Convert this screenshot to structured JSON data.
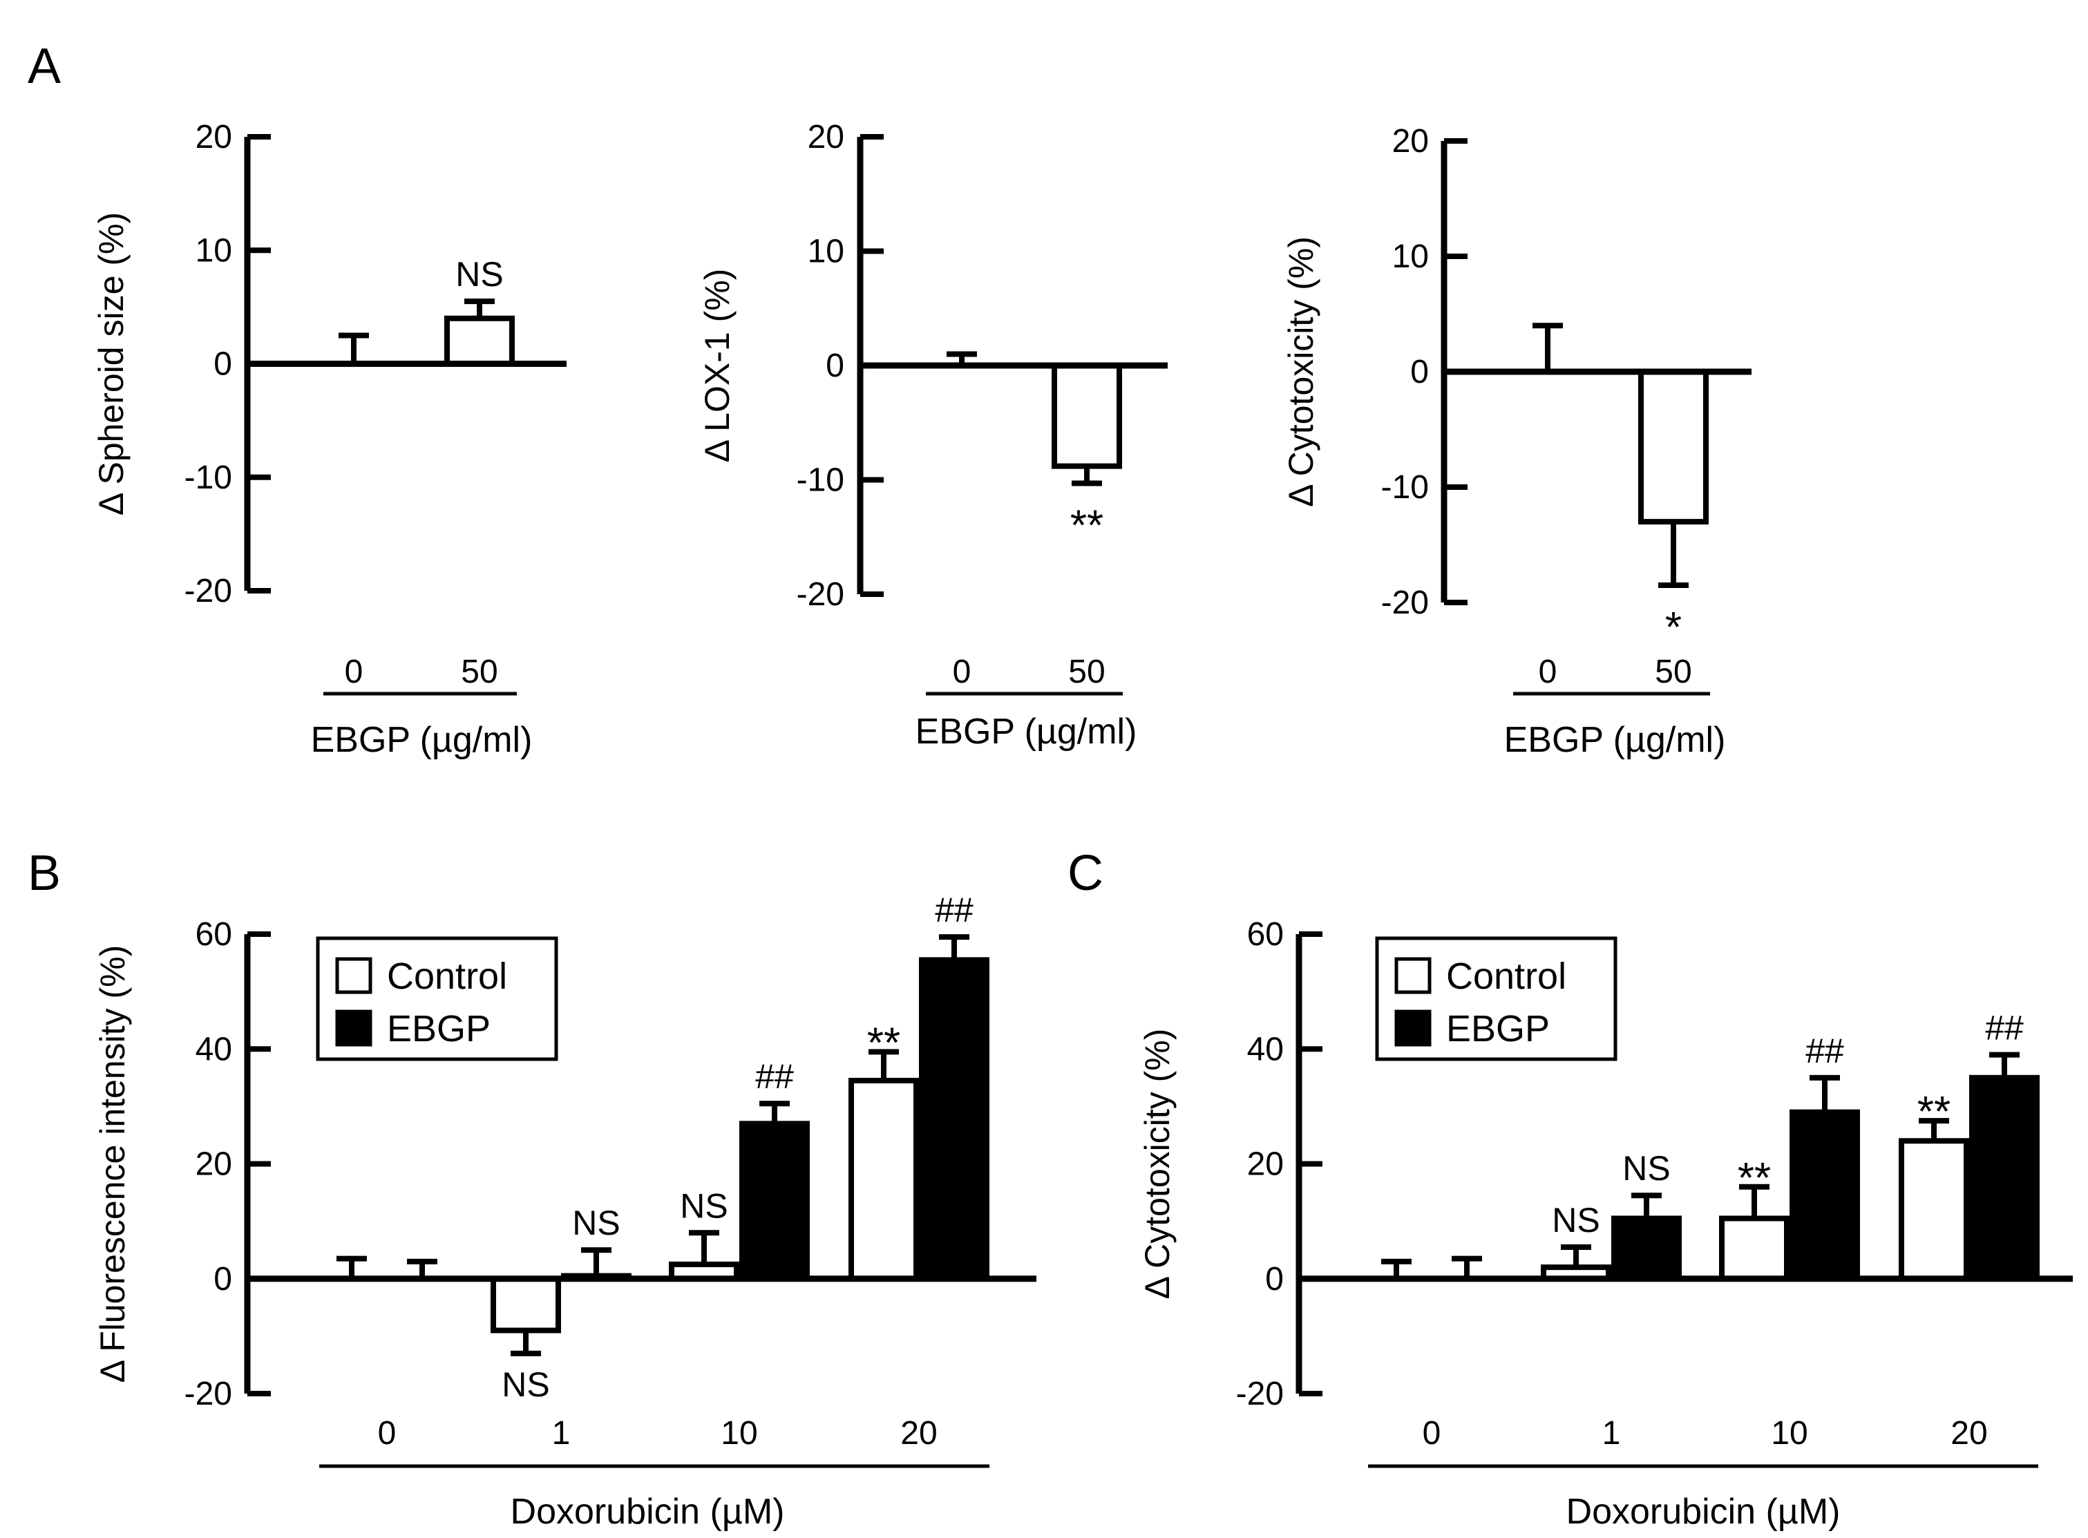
{
  "chart_data": [
    {
      "id": "A1",
      "type": "bar",
      "panel_label": "A",
      "title": "",
      "ylabel": "Δ Spheroid size (%)",
      "xlabel": "EBGP (µg/ml)",
      "categories": [
        "0",
        "50"
      ],
      "ylim": [
        -20,
        20
      ],
      "yticks": [
        20,
        10,
        0,
        -10,
        -20
      ],
      "series": [
        {
          "name": "EBGP",
          "values": [
            0,
            4
          ],
          "errors": [
            2.5,
            1.5
          ],
          "fill": "#ffffff"
        }
      ],
      "annotations": [
        {
          "series": 0,
          "index": 1,
          "text": "NS",
          "position": "above"
        }
      ]
    },
    {
      "id": "A2",
      "type": "bar",
      "panel_label": "",
      "title": "",
      "ylabel": "Δ LOX-1 (%)",
      "xlabel": "EBGP (µg/ml)",
      "categories": [
        "0",
        "50"
      ],
      "ylim": [
        -20,
        20
      ],
      "yticks": [
        20,
        10,
        0,
        -10,
        -20
      ],
      "series": [
        {
          "name": "EBGP",
          "values": [
            0,
            -8.8
          ],
          "errors": [
            1.0,
            1.5
          ],
          "fill": "#ffffff"
        }
      ],
      "annotations": [
        {
          "series": 0,
          "index": 1,
          "text": "**",
          "position": "below"
        }
      ]
    },
    {
      "id": "A3",
      "type": "bar",
      "panel_label": "",
      "title": "",
      "ylabel": "Δ Cytotoxicity (%)",
      "xlabel": "EBGP (µg/ml)",
      "categories": [
        "0",
        "50"
      ],
      "ylim": [
        -20,
        20
      ],
      "yticks": [
        20,
        10,
        0,
        -10,
        -20
      ],
      "series": [
        {
          "name": "EBGP",
          "values": [
            0,
            -13
          ],
          "errors": [
            4.0,
            5.5
          ],
          "fill": "#ffffff"
        }
      ],
      "annotations": [
        {
          "series": 0,
          "index": 1,
          "text": "*",
          "position": "below"
        }
      ]
    },
    {
      "id": "B",
      "type": "bar",
      "panel_label": "B",
      "title": "",
      "ylabel": "Δ Fluorescence intensity (%)",
      "xlabel": "Doxorubicin (µM)",
      "categories": [
        "0",
        "1",
        "10",
        "20"
      ],
      "ylim": [
        -20,
        60
      ],
      "yticks": [
        60,
        40,
        20,
        0,
        -20
      ],
      "legend": {
        "position": "top-left",
        "entries": [
          "Control",
          "EBGP"
        ]
      },
      "series": [
        {
          "name": "Control",
          "values": [
            0,
            -9,
            2.5,
            34.5
          ],
          "errors": [
            3.5,
            4.0,
            5.5,
            5.0
          ],
          "fill": "#ffffff"
        },
        {
          "name": "EBGP",
          "values": [
            0,
            0.5,
            27,
            55.5
          ],
          "errors": [
            3.0,
            4.5,
            3.5,
            4.0
          ],
          "fill": "#000000"
        }
      ],
      "annotations": [
        {
          "series": 0,
          "index": 1,
          "text": "NS",
          "position": "below"
        },
        {
          "series": 1,
          "index": 1,
          "text": "NS",
          "position": "above"
        },
        {
          "series": 0,
          "index": 2,
          "text": "NS",
          "position": "above"
        },
        {
          "series": 1,
          "index": 2,
          "text": "##",
          "position": "above"
        },
        {
          "series": 0,
          "index": 3,
          "text": "**",
          "position": "above"
        },
        {
          "series": 1,
          "index": 3,
          "text": "##",
          "position": "above"
        }
      ]
    },
    {
      "id": "C",
      "type": "bar",
      "panel_label": "C",
      "title": "",
      "ylabel": "Δ Cytotoxicity (%)",
      "xlabel": "Doxorubicin (µM)",
      "categories": [
        "0",
        "1",
        "10",
        "20"
      ],
      "ylim": [
        -20,
        60
      ],
      "yticks": [
        60,
        40,
        20,
        0,
        -20
      ],
      "legend": {
        "position": "top-left",
        "entries": [
          "Control",
          "EBGP"
        ]
      },
      "series": [
        {
          "name": "Control",
          "values": [
            0,
            2,
            10.5,
            24
          ],
          "errors": [
            3.0,
            3.5,
            5.5,
            3.5
          ],
          "fill": "#ffffff"
        },
        {
          "name": "EBGP",
          "values": [
            0,
            10.5,
            29,
            35
          ],
          "errors": [
            3.5,
            4.0,
            6.0,
            4.0
          ],
          "fill": "#000000"
        }
      ],
      "annotations": [
        {
          "series": 0,
          "index": 1,
          "text": "NS",
          "position": "above"
        },
        {
          "series": 1,
          "index": 1,
          "text": "NS",
          "position": "above"
        },
        {
          "series": 0,
          "index": 2,
          "text": "**",
          "position": "above"
        },
        {
          "series": 1,
          "index": 2,
          "text": "##",
          "position": "above"
        },
        {
          "series": 0,
          "index": 3,
          "text": "**",
          "position": "above"
        },
        {
          "series": 1,
          "index": 3,
          "text": "##",
          "position": "above"
        }
      ]
    }
  ]
}
